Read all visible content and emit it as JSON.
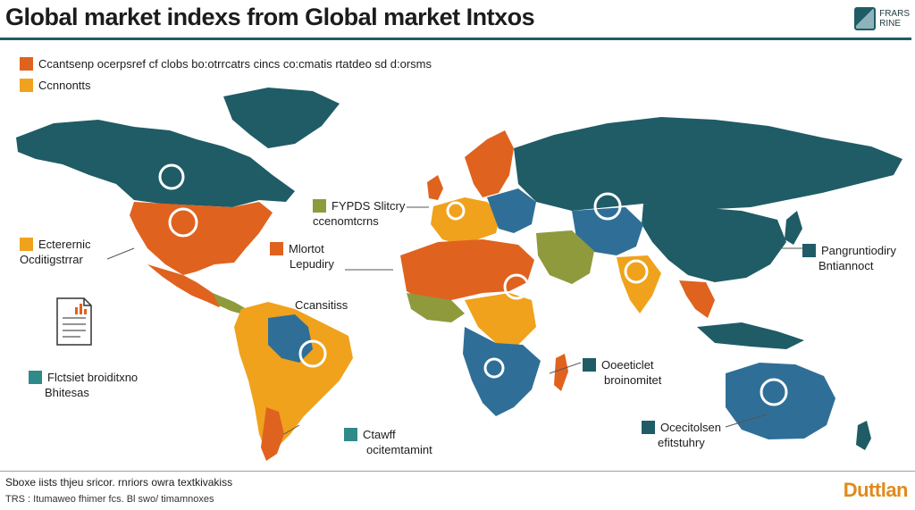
{
  "title": "Global market indexs from Global market Intxos",
  "corner_logo": {
    "line1": "FRARS",
    "line2": "RINE"
  },
  "colors": {
    "teal": "#1f5c66",
    "orange": "#e0621f",
    "amber": "#f0a21c",
    "olive": "#8e9a3c",
    "blue": "#2f6f97",
    "ocean": "#ffffff"
  },
  "legend": [
    {
      "label": "Ccantsenp ocerpsref cf clobs bo:otrrcatrs cincs co:cmatis rtatdeo sd d:orsms",
      "color": "#e0621f"
    },
    {
      "label": "Ccnnontts",
      "color": "#f0a21c"
    }
  ],
  "callouts": {
    "north_america": {
      "line1": "Ecterernic",
      "line2": "Ocditigstrrar",
      "color": "#f0a21c"
    },
    "europe": {
      "line1": "FYPDS Slitcry",
      "line2": "ccenomtcrns",
      "color": "#8e9a3c"
    },
    "africa_north": {
      "line1": "Mlortot",
      "line2": "Lepudiry",
      "color": "#e0621f"
    },
    "south_america_top": {
      "line1": "Ccansitiss"
    },
    "document": {
      "line1": "Flctsiet broiditxno",
      "line2": "Bhitesas",
      "color": "#2f8a8a"
    },
    "south_america_bottom": {
      "line1": "Ctawff",
      "line2": "ocitemtamint",
      "color": "#2f8a8a"
    },
    "indian_ocean": {
      "line1": "Ooeeticlet",
      "line2": "broinomitet",
      "color": "#1f5c66"
    },
    "australia": {
      "line1": "Ocecitolsen",
      "line2": "efitstuhry",
      "color": "#1f5c66"
    },
    "asia_east": {
      "line1": "Pangruntiodiry",
      "line2": "Bntiannoct",
      "color": "#1f5c66"
    }
  },
  "footer": {
    "line1": "Sboxe iists thjeu sricor. rnriors owra textkivakiss",
    "line2": "TRS :   Itumaweo fhimer fcs. Bl swo/ timamnoxes"
  },
  "brand": "Duttlan"
}
